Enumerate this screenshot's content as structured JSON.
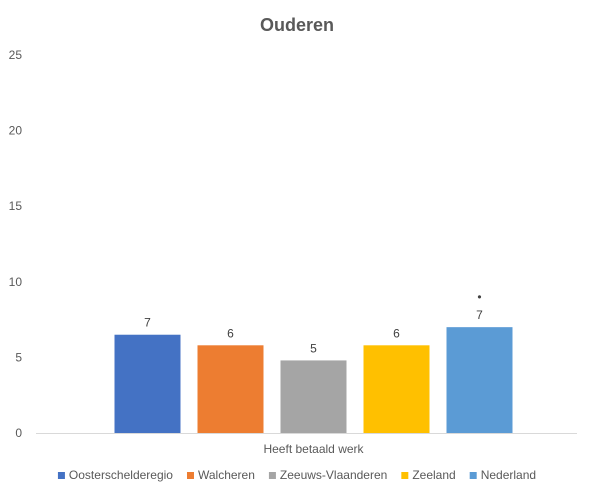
{
  "chart_data": {
    "type": "bar",
    "title": "Ouderen",
    "xlabel": "",
    "ylabel": "",
    "ylim": [
      0,
      25
    ],
    "yticks": [
      0,
      5,
      10,
      15,
      20,
      25
    ],
    "grid": false,
    "legend_position": "bottom",
    "categories": [
      "Heeft betaald werk"
    ],
    "series": [
      {
        "name": "Oosterschelderegio",
        "values": [
          6.5
        ],
        "label": "7",
        "color": "#4472C4"
      },
      {
        "name": "Walcheren",
        "values": [
          5.8
        ],
        "label": "6",
        "color": "#ED7D31"
      },
      {
        "name": "Zeeuws-Vlaanderen",
        "values": [
          4.8
        ],
        "label": "5",
        "color": "#A5A5A5"
      },
      {
        "name": "Zeeland",
        "values": [
          5.8
        ],
        "label": "6",
        "color": "#FFC000"
      },
      {
        "name": "Nederland",
        "values": [
          7.0
        ],
        "label": "7",
        "color": "#5B9BD5",
        "marker": "•"
      }
    ],
    "axis_color": "#D9D9D9"
  }
}
